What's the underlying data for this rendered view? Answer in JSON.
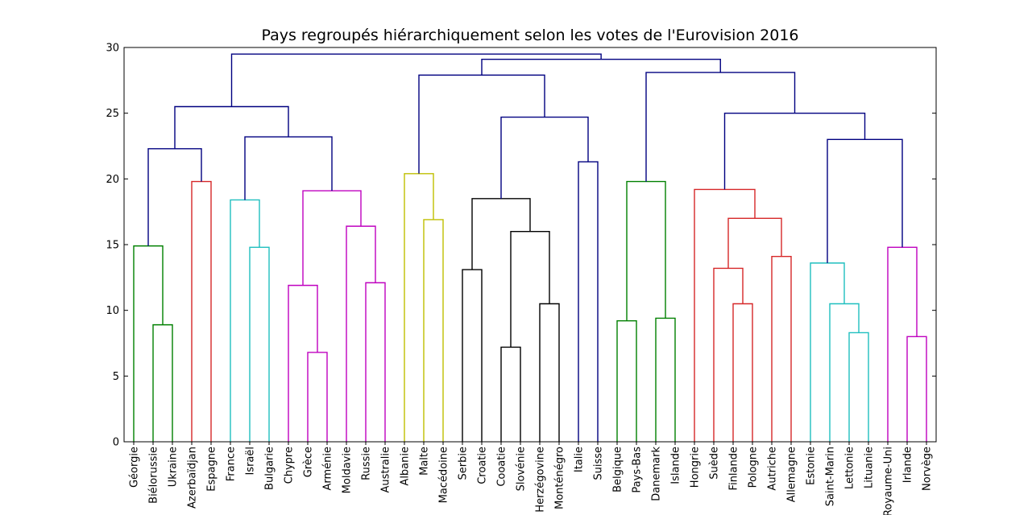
{
  "chart_data": {
    "type": "dendrogram",
    "title": "Pays regroupés hiérarchiquement selon les votes de l'Eurovision 2016",
    "xlabel": "",
    "ylabel": "",
    "ylim": [
      0,
      30
    ],
    "yticks": [
      0,
      5,
      10,
      15,
      20,
      25,
      30
    ],
    "leaves": [
      "Géorgie",
      "Biélorussie",
      "Ukraine",
      "Azerbaïdjan",
      "Espagne",
      "France",
      "Israël",
      "Bulgarie",
      "Chypre",
      "Grèce",
      "Arménie",
      "Moldavie",
      "Russie",
      "Australie",
      "Albanie",
      "Malte",
      "Macédoine",
      "Serbie",
      "Croatie",
      "Cooatie",
      "Slovénie",
      "Herzégovine",
      "Monténégro",
      "Italie",
      "Suisse",
      "Belgique",
      "Pays-Bas",
      "Danemark",
      "Islande",
      "Hongrie",
      "Suède",
      "Finlande",
      "Pologne",
      "Autriche",
      "Allemagne",
      "Estonie",
      "Saint-Marin",
      "Lettonie",
      "Lituanie",
      "Royaume-Uni",
      "Irlande",
      "Norvège"
    ],
    "link_colors": {
      "g": "#008000",
      "r": "#d62728",
      "c": "#1fbfbf",
      "m": "#bf00bf",
      "y": "#bfbf00",
      "k": "#000000",
      "b": "#000080"
    },
    "merges": [
      {
        "a": "L1",
        "b": "L2",
        "h": 8.9,
        "c": "g"
      },
      {
        "a": "L0",
        "b": "N0",
        "h": 14.9,
        "c": "g"
      },
      {
        "a": "L3",
        "b": "L4",
        "h": 19.8,
        "c": "r"
      },
      {
        "a": "N1",
        "b": "N2",
        "h": 22.3,
        "c": "b"
      },
      {
        "a": "L6",
        "b": "L7",
        "h": 14.8,
        "c": "c"
      },
      {
        "a": "L5",
        "b": "N4",
        "h": 18.4,
        "c": "c"
      },
      {
        "a": "L9",
        "b": "L10",
        "h": 6.8,
        "c": "m"
      },
      {
        "a": "L8",
        "b": "N6",
        "h": 11.9,
        "c": "m"
      },
      {
        "a": "L12",
        "b": "L13",
        "h": 12.1,
        "c": "m"
      },
      {
        "a": "L11",
        "b": "N8",
        "h": 16.4,
        "c": "m"
      },
      {
        "a": "N7",
        "b": "N9",
        "h": 19.1,
        "c": "m"
      },
      {
        "a": "N5",
        "b": "N10",
        "h": 23.2,
        "c": "b"
      },
      {
        "a": "N3",
        "b": "N11",
        "h": 25.5,
        "c": "b"
      },
      {
        "a": "L15",
        "b": "L16",
        "h": 16.9,
        "c": "y"
      },
      {
        "a": "L14",
        "b": "N13",
        "h": 20.4,
        "c": "y"
      },
      {
        "a": "L17",
        "b": "L18",
        "h": 13.1,
        "c": "k"
      },
      {
        "a": "L19",
        "b": "L20",
        "h": 7.2,
        "c": "k"
      },
      {
        "a": "L21",
        "b": "L22",
        "h": 10.5,
        "c": "k"
      },
      {
        "a": "N16",
        "b": "N17",
        "h": 16.0,
        "c": "k"
      },
      {
        "a": "N15",
        "b": "N18",
        "h": 18.5,
        "c": "k"
      },
      {
        "a": "L23",
        "b": "L24",
        "h": 21.3,
        "c": "b"
      },
      {
        "a": "N19",
        "b": "N20",
        "h": 24.7,
        "c": "b"
      },
      {
        "a": "N14",
        "b": "N21",
        "h": 27.9,
        "c": "b"
      },
      {
        "a": "L25",
        "b": "L26",
        "h": 9.2,
        "c": "g"
      },
      {
        "a": "L27",
        "b": "L28",
        "h": 9.4,
        "c": "g"
      },
      {
        "a": "N23",
        "b": "N24",
        "h": 19.8,
        "c": "g"
      },
      {
        "a": "L31",
        "b": "L32",
        "h": 10.5,
        "c": "r"
      },
      {
        "a": "L30",
        "b": "N26",
        "h": 13.2,
        "c": "r"
      },
      {
        "a": "L33",
        "b": "L34",
        "h": 14.1,
        "c": "r"
      },
      {
        "a": "N27",
        "b": "N28",
        "h": 17.0,
        "c": "r"
      },
      {
        "a": "L29",
        "b": "N29",
        "h": 19.2,
        "c": "r"
      },
      {
        "a": "L37",
        "b": "L38",
        "h": 8.3,
        "c": "c"
      },
      {
        "a": "L36",
        "b": "N31",
        "h": 10.5,
        "c": "c"
      },
      {
        "a": "L35",
        "b": "N32",
        "h": 13.6,
        "c": "c"
      },
      {
        "a": "L40",
        "b": "L41",
        "h": 8.0,
        "c": "m"
      },
      {
        "a": "L39",
        "b": "N34",
        "h": 14.8,
        "c": "m"
      },
      {
        "a": "N33",
        "b": "N35",
        "h": 23.0,
        "c": "b"
      },
      {
        "a": "N30",
        "b": "N36",
        "h": 25.0,
        "c": "b"
      },
      {
        "a": "N25",
        "b": "N37",
        "h": 28.1,
        "c": "b"
      },
      {
        "a": "N22",
        "b": "N38",
        "h": 29.1,
        "c": "b"
      },
      {
        "a": "N12",
        "b": "N39",
        "h": 29.5,
        "c": "b"
      }
    ]
  }
}
